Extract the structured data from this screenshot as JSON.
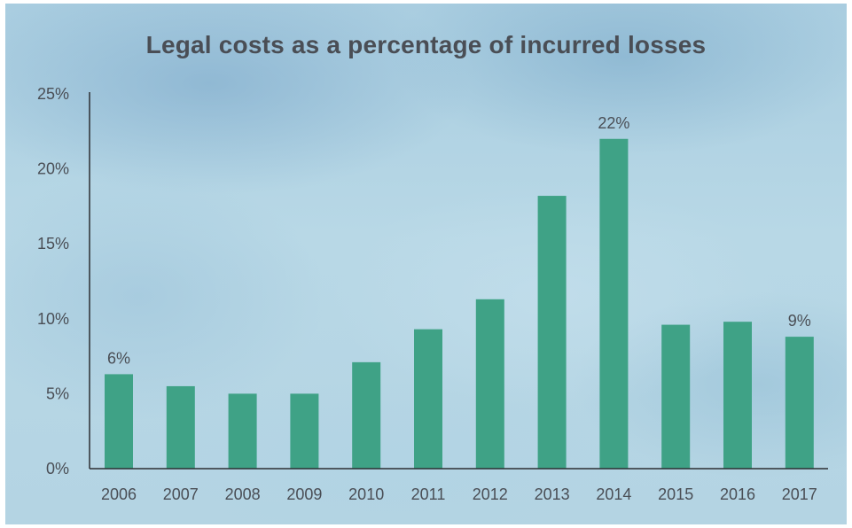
{
  "chart_data": {
    "type": "bar",
    "title": "Legal costs as a percentage of incurred losses",
    "xlabel": "",
    "ylabel": "",
    "categories": [
      "2006",
      "2007",
      "2008",
      "2009",
      "2010",
      "2011",
      "2012",
      "2013",
      "2014",
      "2015",
      "2016",
      "2017"
    ],
    "values": [
      6.3,
      5.5,
      5.0,
      5.0,
      7.1,
      9.3,
      11.3,
      18.2,
      22.0,
      9.6,
      9.8,
      8.8
    ],
    "ylim": [
      0,
      25
    ],
    "yticks": [
      0,
      5,
      10,
      15,
      20,
      25
    ],
    "ytick_labels": [
      "0%",
      "5%",
      "10%",
      "15%",
      "20%",
      "25%"
    ],
    "data_labels": [
      {
        "category": "2006",
        "text": "6%"
      },
      {
        "category": "2014",
        "text": "22%"
      },
      {
        "category": "2017",
        "text": "9%"
      }
    ],
    "bar_color": "#3fa286",
    "text_color": "#4a4e55",
    "grid": false,
    "legend": "none"
  }
}
